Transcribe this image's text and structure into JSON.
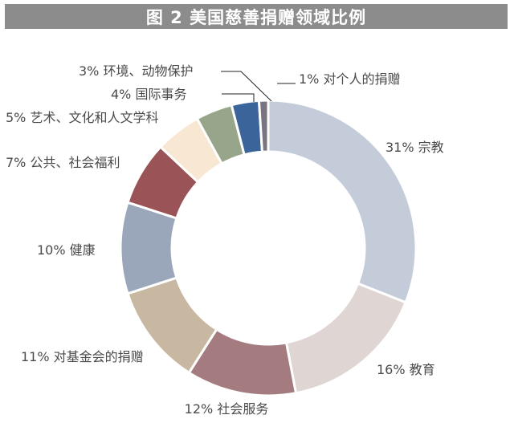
{
  "title": "图 2 美国慈善捐赠领域比例",
  "chart_data": {
    "type": "pie",
    "donut": true,
    "title": "图 2 美国慈善捐赠领域比例",
    "slices": [
      {
        "label": "31%  宗教",
        "value": 31,
        "color": "#c3ccd8"
      },
      {
        "label": "16%  教育",
        "value": 16,
        "color": "#dfd6d4"
      },
      {
        "label": "12%  社会服务",
        "value": 12,
        "color": "#a47c7f"
      },
      {
        "label": "11%  对基金会的捐赠",
        "value": 11,
        "color": "#c8b8a1"
      },
      {
        "label": "10%  健康",
        "value": 10,
        "color": "#9aa6b9"
      },
      {
        "label": "7%  公共、社会福利",
        "value": 7,
        "color": "#9a5356"
      },
      {
        "label": "5%  艺术、文化和人文学科",
        "value": 5,
        "color": "#f8e7d2"
      },
      {
        "label": "4%  国际事务",
        "value": 4,
        "color": "#97a58b"
      },
      {
        "label": "3%  环境、动物保护",
        "value": 3,
        "color": "#3a649a"
      },
      {
        "label": "1%  对个人的捐赠",
        "value": 1,
        "color": "#787482"
      }
    ]
  }
}
